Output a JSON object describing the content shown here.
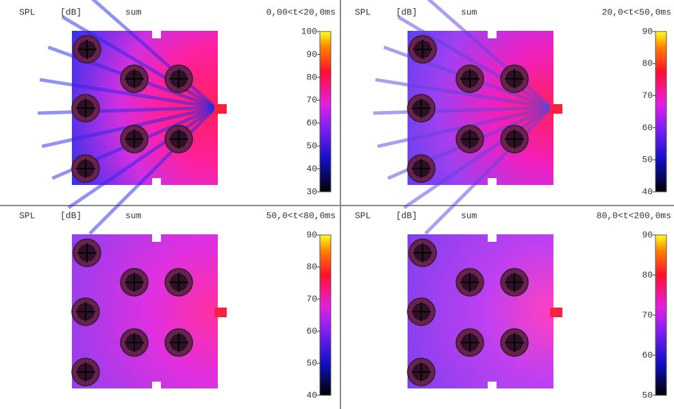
{
  "panels": [
    {
      "quantity": "SPL",
      "unit": "[dB]",
      "mode": "sum",
      "interval": "0,00<t<20,0ms",
      "clim": [
        30,
        100
      ],
      "ticks": [
        100,
        90,
        80,
        70,
        60,
        50,
        40,
        30
      ]
    },
    {
      "quantity": "SPL",
      "unit": "[dB]",
      "mode": "sum",
      "interval": "20,0<t<50,0ms",
      "clim": [
        40,
        90
      ],
      "ticks": [
        90,
        80,
        70,
        60,
        50,
        40
      ]
    },
    {
      "quantity": "SPL",
      "unit": "[dB]",
      "mode": "sum",
      "interval": "50,0<t<80,0ms",
      "clim": [
        40,
        90
      ],
      "ticks": [
        90,
        80,
        70,
        60,
        50,
        40
      ]
    },
    {
      "quantity": "SPL",
      "unit": "[dB]",
      "mode": "sum",
      "interval": "80,0<t<200,0ms",
      "clim": [
        50,
        90
      ],
      "ticks": [
        90,
        80,
        70,
        60,
        50
      ]
    }
  ]
}
